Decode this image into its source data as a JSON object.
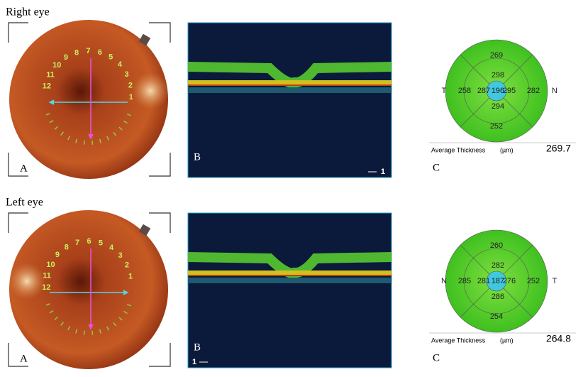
{
  "panels": [
    {
      "title": "Right eye",
      "fundus": {
        "label": "A",
        "clock": [
          1,
          2,
          3,
          4,
          5,
          6,
          7,
          8,
          9,
          10,
          11,
          12
        ]
      },
      "oct": {
        "label": "B",
        "scan": 1
      },
      "map": {
        "label": "C",
        "side_left": "T",
        "side_right": "N",
        "center": 196,
        "inner": {
          "top": 298,
          "left": 287,
          "right": 295,
          "bottom": 294
        },
        "outer": {
          "top": 269,
          "left": 258,
          "right": 282,
          "bottom": 252
        },
        "avg_label": "Average Thickness",
        "unit": "(µm)",
        "avg": 269.7
      }
    },
    {
      "title": "Left eye",
      "fundus": {
        "label": "A",
        "clock": [
          1,
          2,
          3,
          4,
          5,
          6,
          7,
          8,
          9,
          10,
          11,
          12
        ]
      },
      "oct": {
        "label": "B",
        "scan": 1
      },
      "map": {
        "label": "C",
        "side_left": "N",
        "side_right": "T",
        "center": 187,
        "inner": {
          "top": 282,
          "left": 281,
          "right": 276,
          "bottom": 286
        },
        "outer": {
          "top": 260,
          "left": 285,
          "right": 252,
          "bottom": 254
        },
        "avg_label": "Average Thickness",
        "unit": "(µm)",
        "avg": 264.8
      }
    }
  ]
}
